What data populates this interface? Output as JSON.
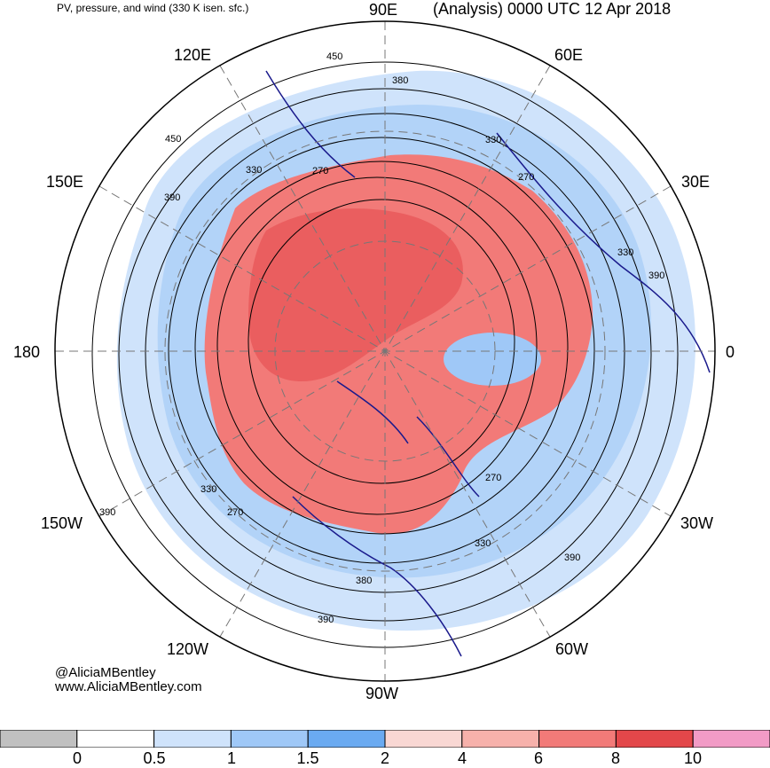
{
  "header": {
    "subtitle": "PV, pressure, and wind (330 K isen. sfc.)",
    "title": "(Analysis) 0000 UTC 12 Apr 2018"
  },
  "longitude_labels": {
    "lon_90e": "90E",
    "lon_60e": "60E",
    "lon_120e": "120E",
    "lon_30e": "30E",
    "lon_150e": "150E",
    "lon_180": "180",
    "lon_0": "0",
    "lon_150w": "150W",
    "lon_30w": "30W",
    "lon_120w": "120W",
    "lon_60w": "60W",
    "lon_90w": "90W"
  },
  "contour_labels": [
    "450",
    "380",
    "450",
    "330",
    "270",
    "390",
    "330",
    "270",
    "330",
    "390",
    "330",
    "390",
    "270",
    "330",
    "390",
    "380",
    "390",
    "270"
  ],
  "credits": {
    "twitter": "@AliciaMBentley",
    "website": "www.AliciaMBentley.com"
  },
  "colorbar": {
    "colors": [
      "#c0c0c0",
      "#ffffff",
      "#cfe3fb",
      "#9fc8f7",
      "#6aaaf1",
      "#f9d7d3",
      "#f7b1ab",
      "#f27a78",
      "#e3474a",
      "#f29bc6"
    ],
    "ticks": [
      "0",
      "0.5",
      "1",
      "1.5",
      "2",
      "4",
      "6",
      "8",
      "10"
    ]
  },
  "map_colors": {
    "pv_high": "#f27a78",
    "pv_very_high": "#e3474a",
    "pv_low": "#cfe3fb",
    "pv_mid": "#9fc8f7",
    "coastline": "#1a1a8c",
    "contour": "#000000",
    "graticule": "#777777"
  }
}
